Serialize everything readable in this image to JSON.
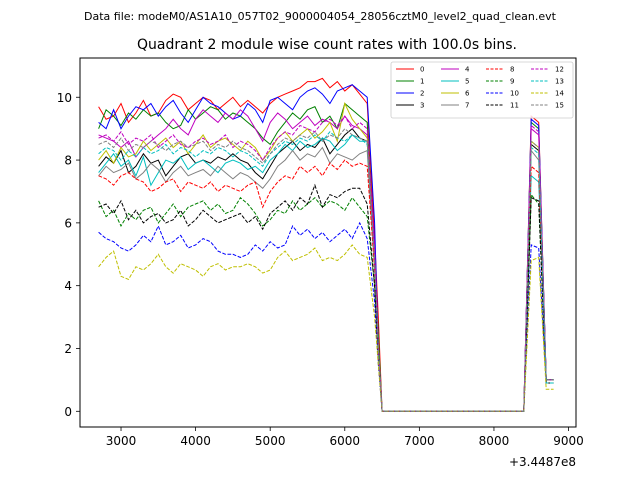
{
  "chart_data": {
    "type": "line",
    "suptitle": "Data file: modeM0/AS1A10_057T02_9000004054_28056cztM0_level2_quad_clean.evt",
    "title": "Quadrant 2 module wise count rates with 100.0s bins.",
    "xlabel": "",
    "ylabel": "",
    "x_offset_label": "+3.4487e8",
    "xlim": [
      2450,
      9100
    ],
    "ylim": [
      -0.5,
      11.25
    ],
    "xticks": [
      3000,
      4000,
      5000,
      6000,
      7000,
      8000,
      9000
    ],
    "yticks": [
      0,
      2,
      4,
      6,
      8,
      10
    ],
    "legend_location": "upper-right",
    "x": [
      2700,
      2800,
      2900,
      3000,
      3100,
      3200,
      3300,
      3400,
      3500,
      3600,
      3700,
      3800,
      3900,
      4000,
      4100,
      4200,
      4300,
      4400,
      4500,
      4600,
      4700,
      4800,
      4900,
      5000,
      5100,
      5200,
      5300,
      5400,
      5500,
      5600,
      5700,
      5800,
      5900,
      6000,
      6100,
      6200,
      6300,
      6400,
      6450,
      6500,
      6600,
      6700,
      6800,
      6900,
      7000,
      7100,
      7200,
      7300,
      7400,
      7500,
      7600,
      7700,
      7800,
      7900,
      8000,
      8100,
      8200,
      8300,
      8400,
      8500,
      8600,
      8700,
      8800
    ],
    "series": [
      {
        "name": "0",
        "color": "#ff0000",
        "dash": "solid",
        "values": [
          9.7,
          9.3,
          9.4,
          9.8,
          9.2,
          9.5,
          9.9,
          9.4,
          9.5,
          9.9,
          10.1,
          10.0,
          9.6,
          9.8,
          10.0,
          9.9,
          9.6,
          9.8,
          10.0,
          9.7,
          9.9,
          9.7,
          9.5,
          9.8,
          10.0,
          10.1,
          10.2,
          10.3,
          10.5,
          10.5,
          10.6,
          10.3,
          10.5,
          10.2,
          10.4,
          10.1,
          9.8,
          5.5,
          3.0,
          0,
          0,
          0,
          0,
          0,
          0,
          0,
          0,
          0,
          0,
          0,
          0,
          0,
          0,
          0,
          0,
          0,
          0,
          0,
          0,
          9.4,
          9.2,
          1.0,
          1.0
        ]
      },
      {
        "name": "1",
        "color": "#008000",
        "dash": "solid",
        "values": [
          9.0,
          9.6,
          9.4,
          9.1,
          9.5,
          9.3,
          9.6,
          9.4,
          9.5,
          9.2,
          9.0,
          9.1,
          9.6,
          9.3,
          9.5,
          9.7,
          9.6,
          9.3,
          9.5,
          9.4,
          9.2,
          9.0,
          8.7,
          8.5,
          8.9,
          9.2,
          9.5,
          9.3,
          9.6,
          9.7,
          9.2,
          9.4,
          9.0,
          9.8,
          9.6,
          9.4,
          9.2,
          5.0,
          2.5,
          0,
          0,
          0,
          0,
          0,
          0,
          0,
          0,
          0,
          0,
          0,
          0,
          0,
          0,
          0,
          0,
          0,
          0,
          0,
          0,
          9.2,
          9.0,
          1.0,
          1.0
        ]
      },
      {
        "name": "2",
        "color": "#0000ff",
        "dash": "solid",
        "values": [
          9.2,
          9.0,
          9.6,
          9.0,
          9.4,
          9.7,
          9.6,
          9.8,
          9.4,
          9.7,
          9.9,
          9.5,
          9.2,
          9.6,
          10.0,
          9.8,
          9.7,
          9.5,
          9.3,
          9.4,
          9.8,
          9.6,
          9.2,
          9.9,
          10.0,
          9.8,
          9.6,
          10.0,
          10.2,
          10.3,
          10.1,
          9.8,
          10.2,
          10.3,
          10.4,
          10.2,
          10.0,
          6.0,
          2.0,
          0,
          0,
          0,
          0,
          0,
          0,
          0,
          0,
          0,
          0,
          0,
          0,
          0,
          0,
          0,
          0,
          0,
          0,
          0,
          0,
          9.3,
          9.1,
          1.0,
          1.0
        ]
      },
      {
        "name": "3",
        "color": "#000000",
        "dash": "solid",
        "values": [
          7.8,
          8.1,
          7.9,
          8.3,
          7.6,
          7.8,
          8.2,
          7.9,
          8.0,
          7.5,
          7.8,
          8.1,
          8.2,
          7.9,
          8.0,
          7.9,
          8.1,
          8.0,
          8.2,
          8.0,
          7.9,
          7.6,
          7.4,
          7.8,
          8.2,
          8.4,
          8.6,
          8.3,
          8.5,
          8.4,
          8.7,
          8.2,
          8.5,
          8.8,
          9.0,
          8.7,
          8.6,
          5.0,
          2.0,
          0,
          0,
          0,
          0,
          0,
          0,
          0,
          0,
          0,
          0,
          0,
          0,
          0,
          0,
          0,
          0,
          0,
          0,
          0,
          0,
          8.5,
          8.3,
          1.0,
          1.0
        ]
      },
      {
        "name": "4",
        "color": "#bf00bf",
        "dash": "solid",
        "values": [
          8.8,
          8.7,
          8.6,
          8.4,
          8.6,
          8.1,
          8.4,
          8.6,
          8.8,
          9.0,
          9.3,
          9.0,
          8.8,
          9.3,
          9.6,
          9.4,
          9.2,
          9.5,
          9.3,
          9.6,
          9.4,
          9.0,
          8.6,
          9.2,
          9.5,
          9.3,
          9.0,
          9.2,
          9.4,
          9.1,
          9.3,
          9.2,
          9.0,
          9.4,
          9.1,
          9.0,
          8.8,
          5.2,
          2.0,
          0,
          0,
          0,
          0,
          0,
          0,
          0,
          0,
          0,
          0,
          0,
          0,
          0,
          0,
          0,
          0,
          0,
          0,
          0,
          0,
          9.0,
          8.8,
          1.0,
          1.0
        ]
      },
      {
        "name": "5",
        "color": "#00bfbf",
        "dash": "solid",
        "values": [
          7.6,
          7.9,
          8.2,
          7.8,
          8.0,
          7.5,
          8.1,
          7.2,
          7.6,
          8.0,
          7.9,
          8.1,
          7.7,
          7.9,
          8.0,
          7.8,
          7.6,
          7.9,
          8.0,
          7.9,
          7.7,
          7.8,
          7.6,
          8.0,
          8.2,
          8.5,
          8.3,
          8.6,
          8.4,
          8.5,
          8.7,
          8.6,
          8.3,
          8.5,
          8.8,
          8.6,
          8.6,
          4.8,
          2.0,
          0,
          0,
          0,
          0,
          0,
          0,
          0,
          0,
          0,
          0,
          0,
          0,
          0,
          0,
          0,
          0,
          0,
          0,
          0,
          0,
          7.5,
          7.3,
          1.0,
          1.0
        ]
      },
      {
        "name": "6",
        "color": "#bfbf00",
        "dash": "solid",
        "values": [
          8.0,
          8.3,
          7.9,
          8.4,
          8.1,
          8.2,
          8.6,
          8.3,
          8.5,
          8.7,
          8.4,
          8.6,
          8.2,
          8.5,
          8.8,
          8.4,
          8.6,
          8.7,
          8.5,
          8.3,
          8.6,
          8.4,
          8.0,
          8.3,
          8.7,
          8.9,
          8.6,
          8.8,
          9.0,
          8.7,
          8.9,
          9.2,
          8.6,
          9.8,
          9.3,
          9.0,
          8.7,
          4.8,
          2.0,
          0,
          0,
          0,
          0,
          0,
          0,
          0,
          0,
          0,
          0,
          0,
          0,
          0,
          0,
          0,
          0,
          0,
          0,
          0,
          0,
          8.6,
          8.4,
          0.9,
          0.9
        ]
      },
      {
        "name": "7",
        "color": "#808080",
        "dash": "solid",
        "values": [
          7.5,
          7.8,
          7.6,
          7.7,
          7.9,
          7.4,
          7.6,
          7.9,
          7.7,
          7.3,
          7.6,
          7.8,
          7.5,
          7.6,
          7.7,
          7.5,
          7.8,
          7.6,
          7.4,
          7.6,
          7.5,
          7.3,
          7.1,
          7.4,
          7.8,
          8.0,
          8.3,
          8.0,
          8.2,
          8.1,
          8.4,
          7.9,
          8.2,
          8.1,
          8.0,
          8.2,
          8.3,
          4.5,
          2.0,
          0,
          0,
          0,
          0,
          0,
          0,
          0,
          0,
          0,
          0,
          0,
          0,
          0,
          0,
          0,
          0,
          0,
          0,
          0,
          0,
          8.3,
          8.0,
          1.0,
          1.0
        ]
      },
      {
        "name": "8",
        "color": "#ff0000",
        "dash": "dashed",
        "values": [
          7.5,
          7.4,
          7.2,
          7.5,
          7.6,
          7.4,
          7.3,
          7.0,
          7.1,
          7.3,
          7.4,
          7.0,
          7.3,
          7.2,
          7.1,
          7.3,
          7.0,
          7.2,
          7.1,
          7.0,
          7.2,
          7.3,
          6.5,
          7.0,
          7.3,
          7.5,
          7.4,
          7.8,
          7.6,
          7.8,
          7.5,
          7.9,
          7.7,
          8.0,
          7.8,
          7.9,
          7.8,
          4.5,
          2.0,
          0,
          0,
          0,
          0,
          0,
          0,
          0,
          0,
          0,
          0,
          0,
          0,
          0,
          0,
          0,
          0,
          0,
          0,
          0,
          0,
          7.8,
          7.6,
          0.9,
          0.9
        ]
      },
      {
        "name": "9",
        "color": "#008000",
        "dash": "dashed",
        "values": [
          6.7,
          6.2,
          6.4,
          5.9,
          6.3,
          6.1,
          6.4,
          6.5,
          6.0,
          6.3,
          6.6,
          6.2,
          6.5,
          6.6,
          6.7,
          6.4,
          6.6,
          6.3,
          6.4,
          6.8,
          6.6,
          6.3,
          5.9,
          6.1,
          6.4,
          6.3,
          6.7,
          6.4,
          6.6,
          6.8,
          6.5,
          6.7,
          6.6,
          6.4,
          6.8,
          6.5,
          6.2,
          4.0,
          1.8,
          0,
          0,
          0,
          0,
          0,
          0,
          0,
          0,
          0,
          0,
          0,
          0,
          0,
          0,
          0,
          0,
          0,
          0,
          0,
          0,
          6.9,
          6.6,
          1.0,
          1.0
        ]
      },
      {
        "name": "10",
        "color": "#0000ff",
        "dash": "dashed",
        "values": [
          5.7,
          5.5,
          5.4,
          5.2,
          5.1,
          5.3,
          5.6,
          5.4,
          5.9,
          5.3,
          5.4,
          5.6,
          5.2,
          5.3,
          5.5,
          5.4,
          5.1,
          5.0,
          5.0,
          4.9,
          5.0,
          5.3,
          5.1,
          5.4,
          5.2,
          5.3,
          5.9,
          5.6,
          5.8,
          5.5,
          5.7,
          5.4,
          5.6,
          5.8,
          5.5,
          6.0,
          5.5,
          3.5,
          1.5,
          0,
          0,
          0,
          0,
          0,
          0,
          0,
          0,
          0,
          0,
          0,
          0,
          0,
          0,
          0,
          0,
          0,
          0,
          0,
          0,
          5.3,
          5.2,
          0.9,
          0.9
        ]
      },
      {
        "name": "11",
        "color": "#000000",
        "dash": "dashed",
        "values": [
          6.5,
          6.6,
          6.3,
          6.7,
          6.1,
          6.4,
          6.0,
          6.2,
          6.3,
          6.0,
          6.1,
          6.4,
          5.9,
          6.1,
          6.4,
          6.2,
          6.0,
          6.1,
          6.2,
          6.3,
          6.0,
          6.2,
          5.8,
          6.3,
          6.5,
          6.7,
          6.4,
          6.8,
          6.6,
          7.2,
          6.5,
          6.9,
          6.8,
          7.0,
          7.1,
          7.1,
          6.6,
          4.0,
          1.8,
          0,
          0,
          0,
          0,
          0,
          0,
          0,
          0,
          0,
          0,
          0,
          0,
          0,
          0,
          0,
          0,
          0,
          0,
          0,
          0,
          6.8,
          6.7,
          0.9,
          0.9
        ]
      },
      {
        "name": "12",
        "color": "#bf00bf",
        "dash": "dashed",
        "values": [
          8.7,
          8.8,
          8.6,
          8.9,
          8.5,
          8.7,
          8.6,
          8.8,
          8.4,
          8.6,
          8.8,
          8.5,
          8.4,
          8.6,
          8.7,
          8.5,
          8.6,
          8.8,
          8.4,
          8.6,
          8.5,
          8.3,
          8.0,
          8.4,
          8.7,
          8.9,
          8.8,
          9.1,
          9.0,
          8.9,
          9.2,
          9.3,
          9.1,
          9.4,
          9.0,
          9.2,
          9.0,
          5.0,
          2.0,
          0,
          0,
          0,
          0,
          0,
          0,
          0,
          0,
          0,
          0,
          0,
          0,
          0,
          0,
          0,
          0,
          0,
          0,
          0,
          0,
          9.1,
          8.9,
          1.0,
          1.0
        ]
      },
      {
        "name": "13",
        "color": "#00bfbf",
        "dash": "dashed",
        "values": [
          8.2,
          8.4,
          8.3,
          8.0,
          8.3,
          8.1,
          8.4,
          8.2,
          8.3,
          8.5,
          8.2,
          8.4,
          8.3,
          8.1,
          8.3,
          8.2,
          8.4,
          8.3,
          8.1,
          8.3,
          8.2,
          8.0,
          7.8,
          8.2,
          8.4,
          8.6,
          8.5,
          8.7,
          8.6,
          8.8,
          8.6,
          8.9,
          8.7,
          8.6,
          8.8,
          8.7,
          8.5,
          4.8,
          2.0,
          0,
          0,
          0,
          0,
          0,
          0,
          0,
          0,
          0,
          0,
          0,
          0,
          0,
          0,
          0,
          0,
          0,
          0,
          0,
          0,
          8.4,
          8.2,
          0.9,
          0.9
        ]
      },
      {
        "name": "14",
        "color": "#bfbf00",
        "dash": "dashed",
        "values": [
          4.6,
          4.9,
          5.1,
          4.3,
          4.2,
          4.6,
          4.5,
          4.7,
          5.0,
          4.6,
          4.4,
          4.7,
          4.6,
          4.5,
          4.3,
          4.6,
          4.7,
          4.5,
          4.6,
          4.6,
          4.7,
          4.6,
          4.4,
          4.5,
          4.9,
          5.1,
          4.8,
          4.9,
          5.0,
          5.2,
          4.8,
          4.9,
          4.8,
          5.0,
          5.3,
          5.0,
          4.9,
          3.0,
          1.5,
          0,
          0,
          0,
          0,
          0,
          0,
          0,
          0,
          0,
          0,
          0,
          0,
          0,
          0,
          0,
          0,
          0,
          0,
          0,
          0,
          4.8,
          4.9,
          0.7,
          0.7
        ]
      },
      {
        "name": "15",
        "color": "#808080",
        "dash": "dashed",
        "values": [
          8.5,
          8.6,
          8.4,
          8.7,
          8.3,
          8.5,
          8.4,
          8.6,
          8.5,
          8.3,
          8.5,
          8.6,
          8.4,
          8.5,
          8.6,
          8.3,
          8.5,
          8.4,
          8.6,
          8.4,
          8.3,
          8.1,
          7.9,
          8.2,
          8.5,
          8.7,
          8.6,
          8.8,
          8.7,
          8.9,
          8.6,
          8.8,
          8.7,
          9.0,
          8.8,
          8.7,
          8.6,
          4.8,
          2.0,
          0,
          0,
          0,
          0,
          0,
          0,
          0,
          0,
          0,
          0,
          0,
          0,
          0,
          0,
          0,
          0,
          0,
          0,
          0,
          0,
          8.6,
          8.4,
          1.0,
          1.0
        ]
      }
    ]
  }
}
